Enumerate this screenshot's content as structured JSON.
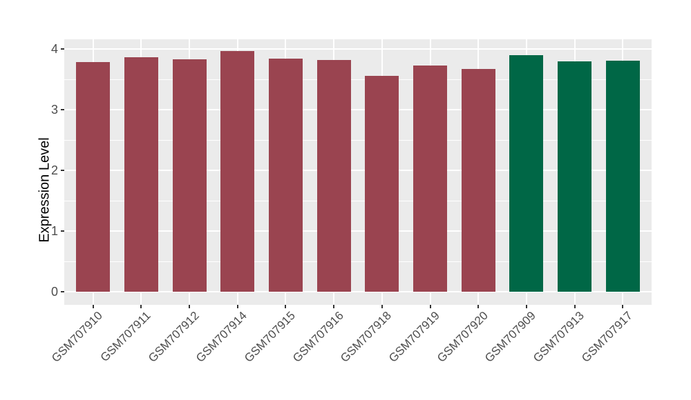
{
  "chart_data": {
    "type": "bar",
    "title": "",
    "xlabel": "",
    "ylabel": "Expression Level",
    "categories": [
      "GSM707910",
      "GSM707911",
      "GSM707912",
      "GSM707914",
      "GSM707915",
      "GSM707916",
      "GSM707918",
      "GSM707919",
      "GSM707920",
      "GSM707909",
      "GSM707913",
      "GSM707917"
    ],
    "values": [
      3.78,
      3.86,
      3.83,
      3.97,
      3.84,
      3.82,
      3.56,
      3.73,
      3.67,
      3.9,
      3.79,
      3.81
    ],
    "bar_colors": [
      "#9A4450",
      "#9A4450",
      "#9A4450",
      "#9A4450",
      "#9A4450",
      "#9A4450",
      "#9A4450",
      "#9A4450",
      "#9A4450",
      "#006746",
      "#006746",
      "#006746"
    ],
    "palette": {
      "maroon": "#9A4450",
      "green": "#006746"
    },
    "groups": [
      {
        "color": "#9A4450",
        "samples": [
          "GSM707910",
          "GSM707911",
          "GSM707912",
          "GSM707914",
          "GSM707915",
          "GSM707916",
          "GSM707918",
          "GSM707919",
          "GSM707920"
        ]
      },
      {
        "color": "#006746",
        "samples": [
          "GSM707909",
          "GSM707913",
          "GSM707917"
        ]
      }
    ],
    "yticks": [
      0,
      1,
      2,
      3,
      4
    ],
    "ytick_labels": [
      "0",
      "1",
      "2",
      "3",
      "4"
    ],
    "minor_yticks": [
      0.5,
      1.5,
      2.5,
      3.5
    ],
    "ylim": [
      0,
      4.18
    ],
    "grid": true,
    "legend_position": "none",
    "panel_background": "#EBEBEB",
    "grid_color": "#FFFFFF",
    "axis_text_color": "#4D4D4D",
    "axis_title_color": "#000000",
    "figure_background": "#FFFFFF",
    "x_label_angle_deg": 45
  }
}
